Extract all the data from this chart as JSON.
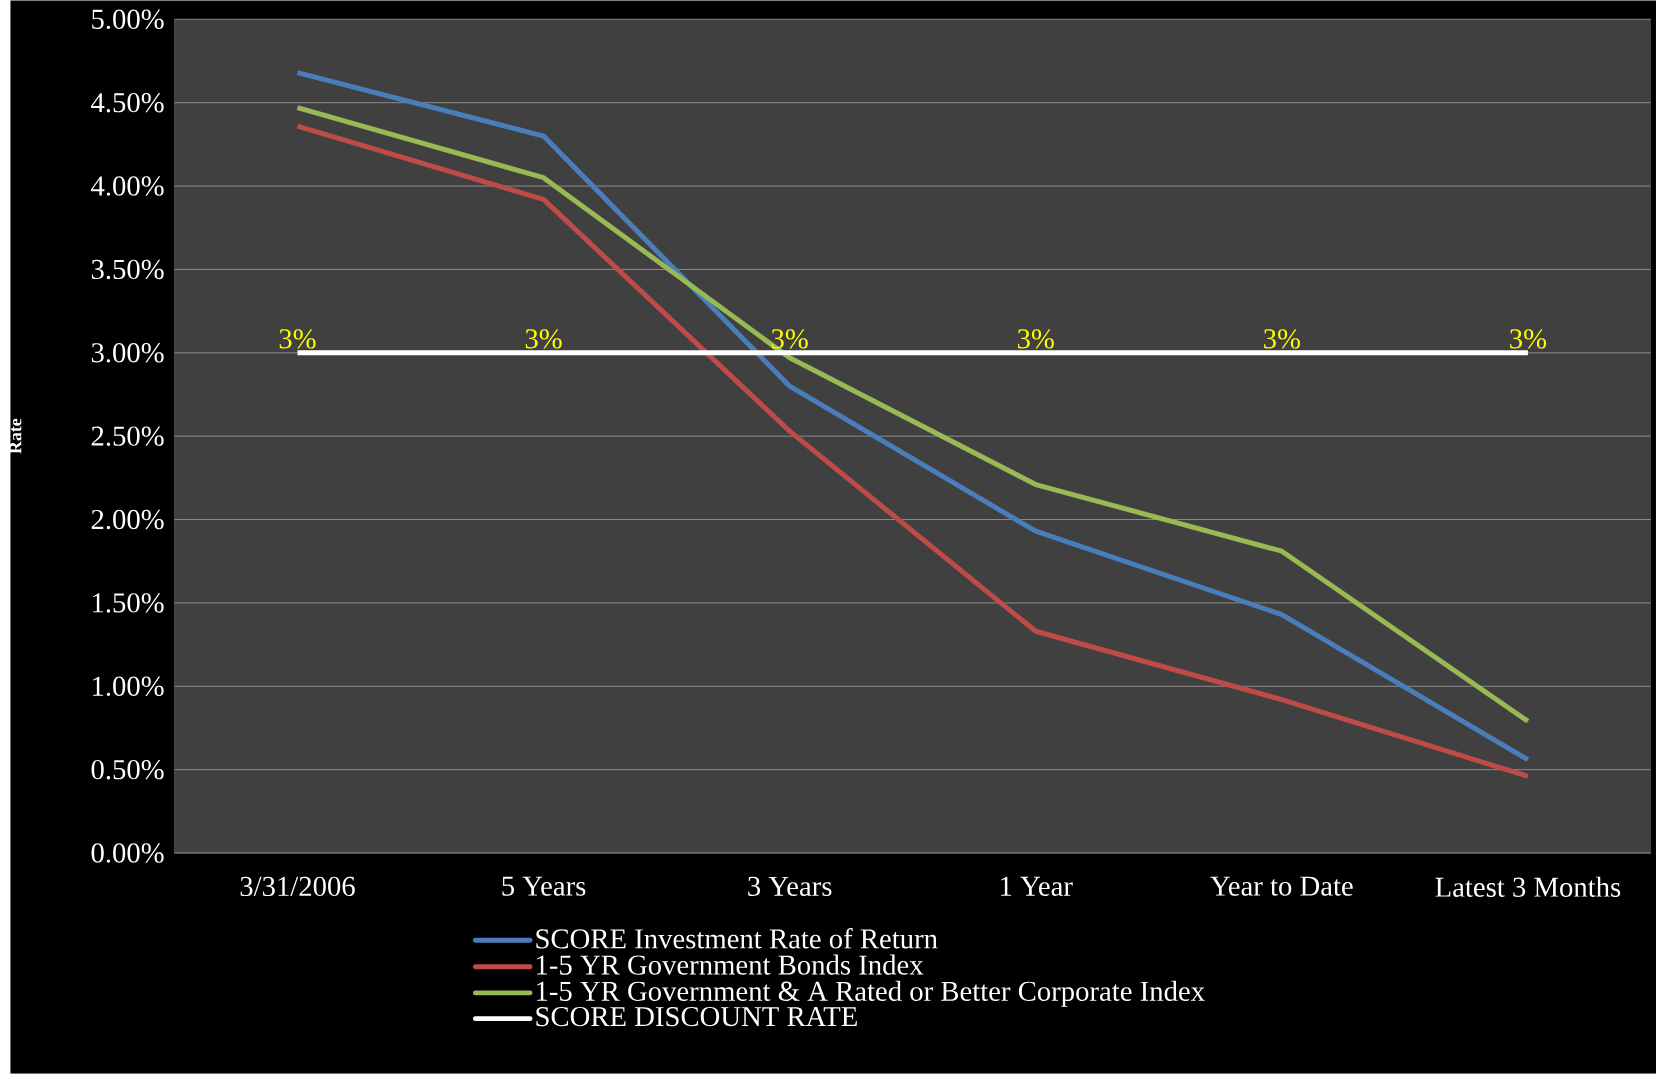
{
  "chart_data": {
    "type": "line",
    "ylabel": "Rate",
    "categories": [
      "3/31/2006",
      "5 Years",
      "3 Years",
      "1 Year",
      "Year to Date",
      "Latest 3 Months"
    ],
    "ylim": [
      0,
      5
    ],
    "yticks": [
      {
        "value": 0,
        "label": "0.00%"
      },
      {
        "value": 0.5,
        "label": "0.50%"
      },
      {
        "value": 1,
        "label": "1.00%"
      },
      {
        "value": 1.5,
        "label": "1.50%"
      },
      {
        "value": 2,
        "label": "2.00%"
      },
      {
        "value": 2.5,
        "label": "2.50%"
      },
      {
        "value": 3,
        "label": "3.00%"
      },
      {
        "value": 3.5,
        "label": "3.50%"
      },
      {
        "value": 4,
        "label": "4.00%"
      },
      {
        "value": 4.5,
        "label": "4.50%"
      },
      {
        "value": 5,
        "label": "5.00%"
      }
    ],
    "grid": "y",
    "legend": "bottom",
    "marker": "none",
    "line_style": "solid",
    "series": [
      {
        "name": "SCORE Investment Rate of Return",
        "color": "#4a7ebb",
        "values": [
          4.68,
          4.3,
          2.8,
          1.93,
          1.43,
          0.56
        ]
      },
      {
        "name": "1-5 YR Government Bonds Index",
        "color": "#be4b48",
        "values": [
          4.36,
          3.92,
          2.53,
          1.33,
          0.92,
          0.46
        ]
      },
      {
        "name": "1-5 YR Government & A Rated or Better Corporate Index",
        "color": "#98b954",
        "values": [
          4.47,
          4.05,
          2.97,
          2.21,
          1.81,
          0.79
        ]
      },
      {
        "name": "SCORE DISCOUNT RATE",
        "color": "#ffffff",
        "values": [
          3,
          3,
          3,
          3,
          3,
          3
        ],
        "value_labels": [
          "3%",
          "3%",
          "3%",
          "3%",
          "3%",
          "3%"
        ]
      }
    ]
  }
}
